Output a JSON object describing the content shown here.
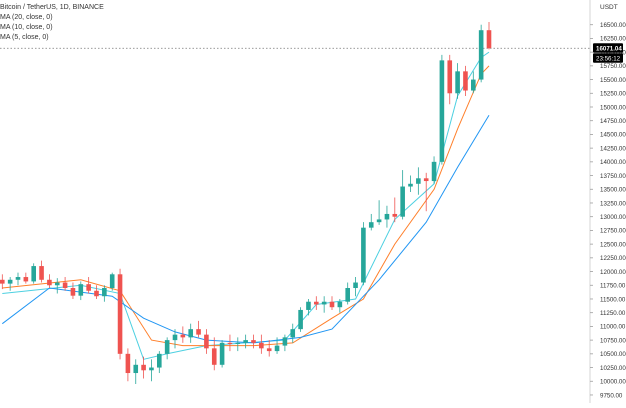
{
  "header": {
    "symbol_line": "Bitcoin / TetherUS, 1D, BINANCE",
    "indicators": [
      "MA (20, close, 0)",
      "MA (10, close, 0)",
      "MA (5, close, 0)"
    ]
  },
  "colors": {
    "up": "#26a69a",
    "down": "#ef5350",
    "ma20": "#2196f3",
    "ma10": "#ff7f2a",
    "ma5": "#4dd0e1",
    "grid": "#e0e0e0",
    "axis_text": "#333333",
    "price_tag_bg": "#000000"
  },
  "chart_data": {
    "type": "candlestick",
    "title": "Bitcoin / TetherUS, 1D, BINANCE",
    "currency_label": "USDT",
    "ylim": [
      9500,
      16900
    ],
    "y_ticks": [
      9750,
      10000,
      10250,
      10500,
      10750,
      11000,
      11250,
      11500,
      11750,
      12000,
      12250,
      12500,
      12750,
      13000,
      13250,
      13500,
      13750,
      14000,
      14250,
      14500,
      14750,
      15000,
      15250,
      15500,
      15750,
      16000,
      16250,
      16500
    ],
    "y_tick_labels": [
      "9750.00",
      "10000.00",
      "10250.00",
      "10500.00",
      "10750.00",
      "11000.00",
      "11250.00",
      "11500.00",
      "11750.00",
      "12000.00",
      "12250.00",
      "12500.00",
      "12750.00",
      "13000.00",
      "13250.00",
      "13500.00",
      "13750.00",
      "14000.00",
      "14250.00",
      "14500.00",
      "14750.00",
      "15000.00",
      "15250.00",
      "15500.00",
      "15750.00",
      "16000.00",
      "16250.00",
      "16500.00"
    ],
    "last_price": 16071.04,
    "last_price_label": "16071.04",
    "countdown_label": "23:56:12",
    "candles": [
      {
        "o": 11850,
        "h": 11950,
        "l": 11680,
        "c": 11780
      },
      {
        "o": 11780,
        "h": 11900,
        "l": 11650,
        "c": 11850
      },
      {
        "o": 11850,
        "h": 11980,
        "l": 11750,
        "c": 11900
      },
      {
        "o": 11900,
        "h": 11980,
        "l": 11780,
        "c": 11820
      },
      {
        "o": 11820,
        "h": 12150,
        "l": 11780,
        "c": 12100
      },
      {
        "o": 12100,
        "h": 12200,
        "l": 11800,
        "c": 11850
      },
      {
        "o": 11850,
        "h": 11950,
        "l": 11700,
        "c": 11750
      },
      {
        "o": 11750,
        "h": 11880,
        "l": 11600,
        "c": 11800
      },
      {
        "o": 11800,
        "h": 11900,
        "l": 11650,
        "c": 11700
      },
      {
        "o": 11700,
        "h": 11800,
        "l": 11500,
        "c": 11560
      },
      {
        "o": 11560,
        "h": 11820,
        "l": 11480,
        "c": 11770
      },
      {
        "o": 11770,
        "h": 11900,
        "l": 11600,
        "c": 11650
      },
      {
        "o": 11650,
        "h": 11750,
        "l": 11500,
        "c": 11550
      },
      {
        "o": 11550,
        "h": 11750,
        "l": 11450,
        "c": 11700
      },
      {
        "o": 11700,
        "h": 11980,
        "l": 11650,
        "c": 11950
      },
      {
        "o": 11950,
        "h": 12050,
        "l": 10400,
        "c": 10500
      },
      {
        "o": 10500,
        "h": 10600,
        "l": 10000,
        "c": 10150
      },
      {
        "o": 10150,
        "h": 10400,
        "l": 9950,
        "c": 10300
      },
      {
        "o": 10300,
        "h": 10450,
        "l": 10050,
        "c": 10200
      },
      {
        "o": 10200,
        "h": 10400,
        "l": 10000,
        "c": 10250
      },
      {
        "o": 10250,
        "h": 10550,
        "l": 10150,
        "c": 10500
      },
      {
        "o": 10500,
        "h": 10800,
        "l": 10400,
        "c": 10750
      },
      {
        "o": 10750,
        "h": 10950,
        "l": 10600,
        "c": 10850
      },
      {
        "o": 10850,
        "h": 11000,
        "l": 10700,
        "c": 10800
      },
      {
        "o": 10800,
        "h": 11050,
        "l": 10700,
        "c": 10950
      },
      {
        "o": 10950,
        "h": 11100,
        "l": 10800,
        "c": 10850
      },
      {
        "o": 10850,
        "h": 10950,
        "l": 10500,
        "c": 10600
      },
      {
        "o": 10600,
        "h": 10800,
        "l": 10200,
        "c": 10300
      },
      {
        "o": 10300,
        "h": 10750,
        "l": 10250,
        "c": 10700
      },
      {
        "o": 10700,
        "h": 10850,
        "l": 10550,
        "c": 10680
      },
      {
        "o": 10680,
        "h": 10800,
        "l": 10550,
        "c": 10700
      },
      {
        "o": 10700,
        "h": 10850,
        "l": 10600,
        "c": 10750
      },
      {
        "o": 10750,
        "h": 10850,
        "l": 10600,
        "c": 10700
      },
      {
        "o": 10700,
        "h": 10850,
        "l": 10500,
        "c": 10600
      },
      {
        "o": 10600,
        "h": 10750,
        "l": 10450,
        "c": 10550
      },
      {
        "o": 10550,
        "h": 10800,
        "l": 10500,
        "c": 10650
      },
      {
        "o": 10650,
        "h": 10850,
        "l": 10550,
        "c": 10800
      },
      {
        "o": 10800,
        "h": 11050,
        "l": 10700,
        "c": 10950
      },
      {
        "o": 10950,
        "h": 11350,
        "l": 10900,
        "c": 11300
      },
      {
        "o": 11300,
        "h": 11500,
        "l": 11200,
        "c": 11450
      },
      {
        "o": 11450,
        "h": 11550,
        "l": 11300,
        "c": 11400
      },
      {
        "o": 11400,
        "h": 11550,
        "l": 11250,
        "c": 11450
      },
      {
        "o": 11450,
        "h": 11550,
        "l": 11300,
        "c": 11350
      },
      {
        "o": 11350,
        "h": 11500,
        "l": 11250,
        "c": 11450
      },
      {
        "o": 11450,
        "h": 11800,
        "l": 11400,
        "c": 11700
      },
      {
        "o": 11700,
        "h": 11900,
        "l": 11550,
        "c": 11800
      },
      {
        "o": 11800,
        "h": 12900,
        "l": 11750,
        "c": 12800
      },
      {
        "o": 12800,
        "h": 13050,
        "l": 12750,
        "c": 12900
      },
      {
        "o": 12900,
        "h": 13300,
        "l": 12850,
        "c": 12950
      },
      {
        "o": 12950,
        "h": 13200,
        "l": 12800,
        "c": 13050
      },
      {
        "o": 13050,
        "h": 13350,
        "l": 12900,
        "c": 13000
      },
      {
        "o": 13000,
        "h": 13850,
        "l": 12950,
        "c": 13550
      },
      {
        "o": 13550,
        "h": 13750,
        "l": 13450,
        "c": 13600
      },
      {
        "o": 13600,
        "h": 13900,
        "l": 13400,
        "c": 13700
      },
      {
        "o": 13700,
        "h": 13800,
        "l": 13100,
        "c": 13650
      },
      {
        "o": 13650,
        "h": 14100,
        "l": 13600,
        "c": 14000
      },
      {
        "o": 14000,
        "h": 15950,
        "l": 13950,
        "c": 15850
      },
      {
        "o": 15850,
        "h": 15950,
        "l": 15050,
        "c": 15250
      },
      {
        "o": 15250,
        "h": 15800,
        "l": 15150,
        "c": 15650
      },
      {
        "o": 15650,
        "h": 15750,
        "l": 15200,
        "c": 15300
      },
      {
        "o": 15300,
        "h": 15650,
        "l": 15250,
        "c": 15500
      },
      {
        "o": 15500,
        "h": 16500,
        "l": 15450,
        "c": 16400
      },
      {
        "o": 16400,
        "h": 16550,
        "l": 16050,
        "c": 16071
      }
    ],
    "ma_series": [
      {
        "name": "MA (5, close, 0)",
        "color_key": "ma5",
        "x": [
          0,
          10,
          15,
          18,
          21,
          26,
          31,
          36,
          40,
          45,
          50,
          55,
          58,
          61,
          62
        ],
        "y": [
          11600,
          11750,
          11600,
          10400,
          10500,
          10650,
          10700,
          10750,
          11400,
          11500,
          12950,
          13600,
          15200,
          15900,
          16000
        ]
      },
      {
        "name": "MA (10, close, 0)",
        "color_key": "ma10",
        "x": [
          0,
          10,
          15,
          19,
          23,
          27,
          32,
          37,
          42,
          46,
          50,
          55,
          58,
          61,
          62
        ],
        "y": [
          11700,
          11850,
          11650,
          10750,
          10650,
          10650,
          10650,
          10700,
          11150,
          11500,
          12500,
          13500,
          14600,
          15600,
          15750
        ]
      },
      {
        "name": "MA (20, close, 0)",
        "color_key": "ma20",
        "x": [
          0,
          6,
          14,
          18,
          22,
          26,
          32,
          38,
          42,
          48,
          54,
          58,
          62
        ],
        "y": [
          11050,
          11700,
          11550,
          11150,
          10900,
          10750,
          10700,
          10800,
          10950,
          11850,
          12900,
          13900,
          14850
        ]
      }
    ]
  }
}
